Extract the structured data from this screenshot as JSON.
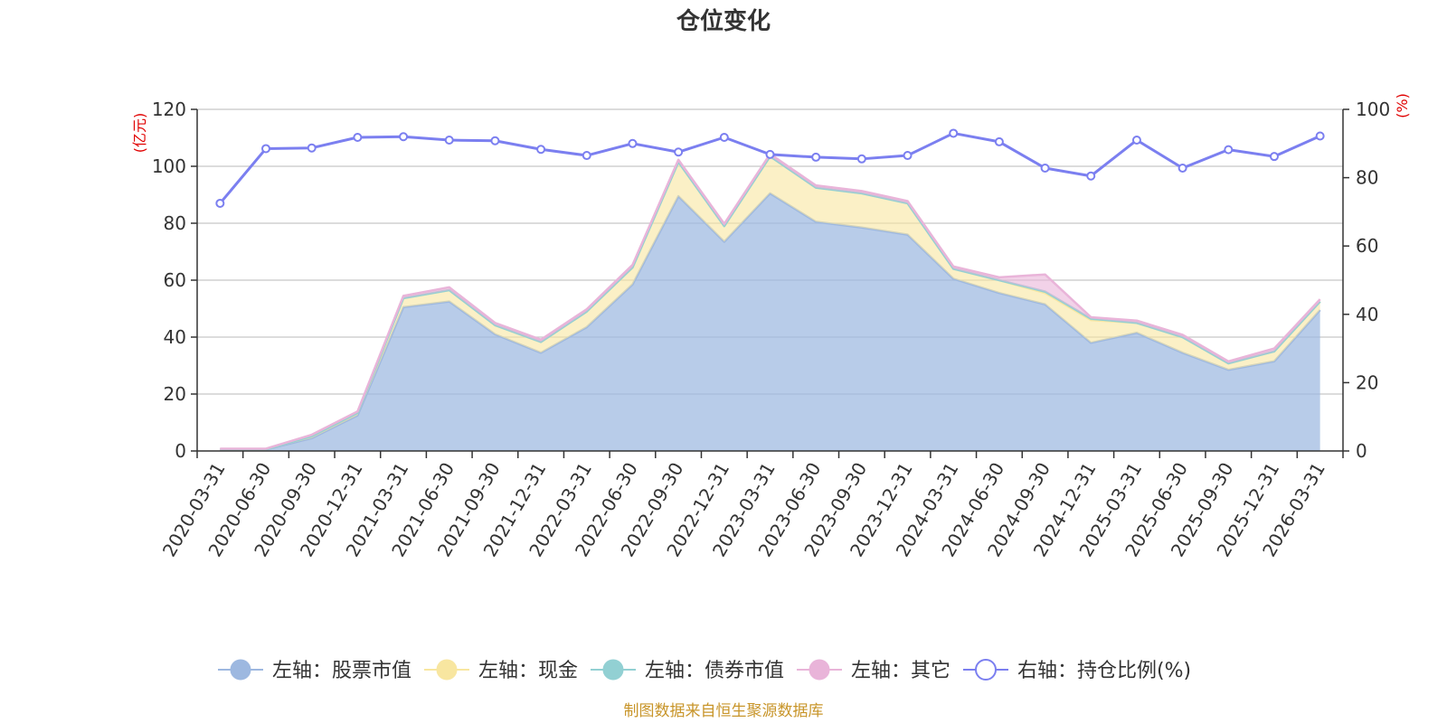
{
  "chart_data": {
    "type": "area",
    "title": "仓位变化",
    "left_axis_unit": "(亿元)",
    "right_axis_unit": "(%)",
    "ylim_left": [
      0,
      120
    ],
    "yticks_left": [
      0,
      20,
      40,
      60,
      80,
      100,
      120
    ],
    "ylim_right": [
      0,
      100
    ],
    "yticks_right": [
      0,
      20,
      40,
      60,
      80,
      100
    ],
    "grid": true,
    "legend_position": "bottom",
    "categories": [
      "2020-03-31",
      "2020-06-30",
      "2020-09-30",
      "2020-12-31",
      "2021-03-31",
      "2021-06-30",
      "2021-09-30",
      "2021-12-31",
      "2022-03-31",
      "2022-06-30",
      "2022-09-30",
      "2022-12-31",
      "2023-03-31",
      "2023-06-30",
      "2023-09-30",
      "2023-12-31",
      "2024-03-31",
      "2024-06-30",
      "2024-09-30",
      "2024-12-31",
      "2025-03-31",
      "2025-06-30",
      "2025-09-30",
      "2025-12-31",
      "2026-03-31"
    ],
    "stacked_series": [
      {
        "name": "左轴：股票市值",
        "color": "#9db8e0",
        "values": [
          0.5,
          0.5,
          4.5,
          12.5,
          50.5,
          52.5,
          41,
          34.5,
          43.5,
          58.5,
          89.5,
          73.5,
          90.5,
          80.5,
          78.5,
          76,
          60.5,
          55.5,
          51.5,
          38,
          41.5,
          34.5,
          28.5,
          31.5,
          49.5
        ]
      },
      {
        "name": "左轴：现金",
        "color": "#f8e6a0",
        "values": [
          0.1,
          0.1,
          0.7,
          0.9,
          3.2,
          4.0,
          3.2,
          3.8,
          5.5,
          6.0,
          12.0,
          5.5,
          13.0,
          12.0,
          12.0,
          11.0,
          3.5,
          4.5,
          4.0,
          8.0,
          3.5,
          5.5,
          2.3,
          3.5,
          3.0
        ]
      },
      {
        "name": "左轴：债券市值",
        "color": "#92d0d3",
        "values": [
          0,
          0,
          0,
          0,
          0,
          0,
          0,
          0,
          0,
          0,
          0,
          0,
          0,
          0,
          0,
          0,
          0,
          0,
          0.5,
          0.5,
          0,
          0,
          0,
          0,
          0
        ]
      },
      {
        "name": "左轴：其它",
        "color": "#e9b4d9",
        "values": [
          0.2,
          0.2,
          0.5,
          0.5,
          0.8,
          1.0,
          0.8,
          0.8,
          0.8,
          0.9,
          0.8,
          0.8,
          0.8,
          0.8,
          0.8,
          0.8,
          0.8,
          1.0,
          6.0,
          0.5,
          0.8,
          0.8,
          0.7,
          1.0,
          0.8
        ]
      }
    ],
    "line_series": {
      "name": "右轴：持仓比例(%)",
      "color": "#7b7ff0",
      "axis": "right",
      "values": [
        72.5,
        88.5,
        88.7,
        91.8,
        92.0,
        91.0,
        90.8,
        88.3,
        86.5,
        90.0,
        87.5,
        91.8,
        86.8,
        86.0,
        85.5,
        86.5,
        93.0,
        90.5,
        82.8,
        80.5,
        91.0,
        82.8,
        88.2,
        86.2,
        92.2
      ]
    },
    "source_note": "制图数据来自恒生聚源数据库",
    "source_color": "#c8952a",
    "unit_color": "#e00000"
  }
}
